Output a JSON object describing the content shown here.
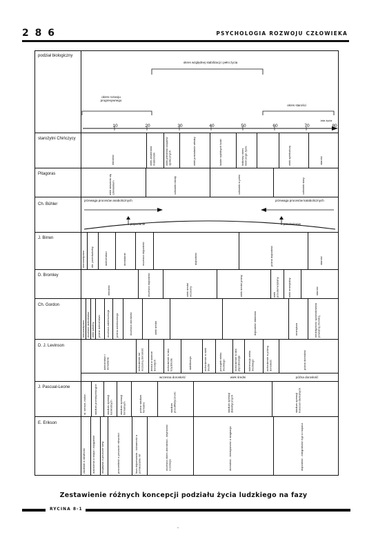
{
  "header": {
    "page_number": "2 8 6",
    "running_title": "PSYCHOLOGIA ROZWOJU CZŁOWIEKA"
  },
  "figure": {
    "rows": [
      {
        "name": "podział biologiczny"
      },
      {
        "name": "starożytni Chińczycy"
      },
      {
        "name": "Pitagoras"
      },
      {
        "name": "Ch. Bühler"
      },
      {
        "name": "J. Birren"
      },
      {
        "name": "D. Bromley"
      },
      {
        "name": "Ch. Gordon"
      },
      {
        "name": "D. J. Levinson"
      },
      {
        "name": "J. Pascual-Leone"
      },
      {
        "name": "E. Erikson"
      }
    ],
    "biological": {
      "stabilization": "okres względnej stabilizacji i pełni życia",
      "development": "okres rozwoju progresywnego",
      "old_age": "okres starości",
      "years_label": "lata życia",
      "ticks": [
        "10",
        "20",
        "30",
        "40",
        "50",
        "60",
        "70",
        "80"
      ]
    },
    "chinese": [
      "młodość",
      "wiek zawierania małżeństw",
      "wiek pełnienia urzędów społecznych",
      "wiek posiadania władzy",
      "ludzie wybitnych ludzi",
      "łódkowy okres twórczego życia",
      "wiek opiekuńczy",
      "starość"
    ],
    "pythagoras": [
      "wiek stawania się człowiekiem",
      "człowiek młody",
      "człowiek w pełni",
      "człowiek stary"
    ],
    "buhler": {
      "anabolic": "przewaga procesów anabolicznych",
      "catabolic": "przewaga procesów katabolicznych",
      "rise": "pojawianie",
      "decline": "przekwitanie"
    },
    "birren": [
      "niemowlęctwo",
      "okr. przedszkolny",
      "dzieciństwo",
      "dorastanie",
      "wczesna dojrzałość",
      "dojrzałość",
      "późna dojrzałość",
      "starość"
    ],
    "bromley": [
      "młodość",
      "wczesna dojrzałość",
      "wiek średni wczesny",
      "wiek średni późny",
      "wiek przedemerytalny",
      "wiek emerytalny",
      "starość"
    ],
    "gordon": [
      "niemowlęctwo",
      "wczesne dzieciństwo",
      "wiek szkolny",
      "późne dzieciństwo",
      "wczesna adolescencja",
      "późna adolescencja",
      "wczesna dorosłość",
      "wiek średni",
      "dojrzałość właściwa",
      "emerytura",
      "niedołężność spowodowana poważną chorobą"
    ],
    "levinson": {
      "cells": [
        "dzieciństwo i dorastanie",
        "wchodzenie we wczesną dorosłość",
        "debiut w świecie dorosłych",
        "wchodzenie w lata trzydzieste",
        "stabilizacja",
        "wchodzenie w wiek średni",
        "początek wieku średniego",
        "wchodzenie w lata pięćdziesiąte",
        "kulminacja wieku średniego",
        "wchodzenie w późną dorosłość",
        "późna dorosłość"
      ],
      "bands": [
        "wczesna dorosłość",
        "wiek średni",
        "późna dorosłość"
      ]
    },
    "pascual_leone": [
      "st. sensor.-motor.",
      "stadium przedoperacyjne",
      "stadium operacji konkretnych",
      "stadium operacji formalnych",
      "późne stadium formalne",
      "stadium przedfiletycznośc",
      "stadium operacji dialektycznych",
      "stadium operacji transcen-dentalnych"
    ],
    "erikson": [
      "zaufanie a nieufność",
      "autonomia a wstyd i zwątpienie",
      "inicjatywa a poczucie winy",
      "pracowitość a poczucie niższości",
      "faza dojrzewania - tożsamość a pomieszanie ról",
      "wczesna okres dorosłości - intymność a izolacja",
      "dorosłość - kreatywność a stagnacja",
      "dojrzałość - integralność ego a rozpacz"
    ]
  },
  "caption": "Zestawienie różnych koncepcji podziału życia ludzkiego na fazy",
  "figure_label": "RYCINA 8-1",
  "stray_mark": "-"
}
